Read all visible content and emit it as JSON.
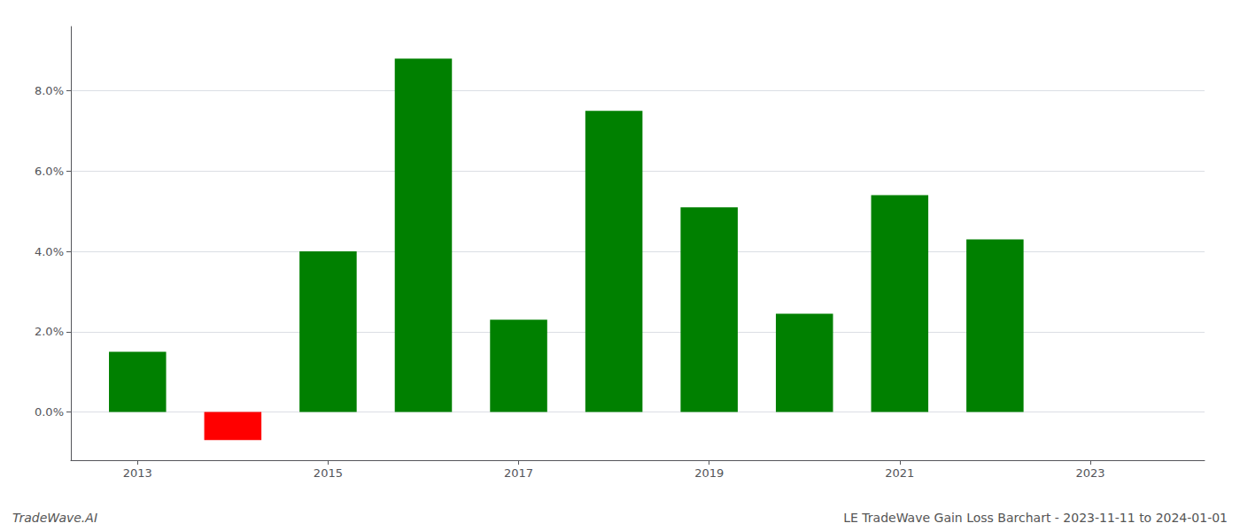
{
  "chart_data": {
    "type": "bar",
    "x": [
      2013,
      2014,
      2015,
      2016,
      2017,
      2018,
      2019,
      2020,
      2021,
      2022
    ],
    "values": [
      0.015,
      -0.007,
      0.04,
      0.088,
      0.023,
      0.075,
      0.051,
      0.0245,
      0.054,
      0.043
    ],
    "colors": [
      "#008000",
      "#ff0000",
      "#008000",
      "#008000",
      "#008000",
      "#008000",
      "#008000",
      "#008000",
      "#008000",
      "#008000"
    ],
    "xlim": [
      2012.3,
      2024.2
    ],
    "xticks": [
      2013,
      2015,
      2017,
      2019,
      2021,
      2023
    ],
    "ylim": [
      -0.012,
      0.096
    ],
    "yticks": [
      {
        "value": 0,
        "label": "0.0%"
      },
      {
        "value": 0.02,
        "label": "2.0%"
      },
      {
        "value": 0.04,
        "label": "4.0%"
      },
      {
        "value": 0.06,
        "label": "6.0%"
      },
      {
        "value": 0.08,
        "label": "8.0%"
      }
    ],
    "grid": true,
    "annotations": [
      "TradeWave.AI",
      "LE TradeWave Gain Loss Barchart - 2023-11-11 to 2024-01-01"
    ]
  }
}
